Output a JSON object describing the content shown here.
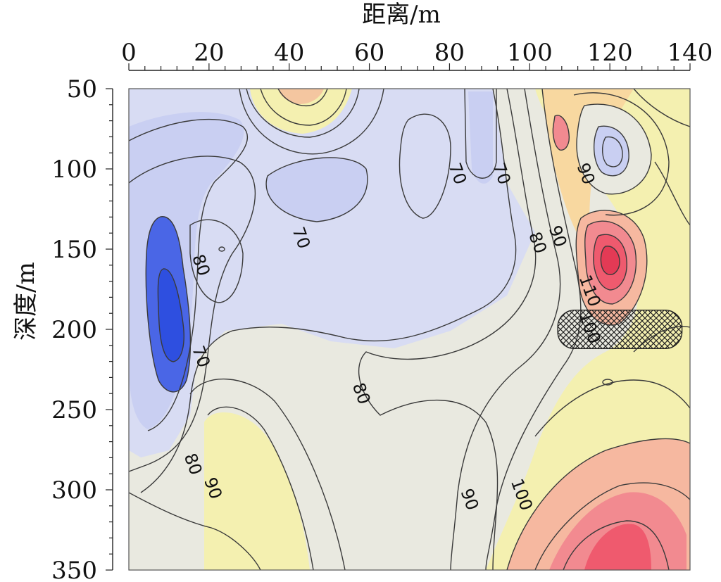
{
  "chart_data": {
    "type": "heatmap",
    "subtype": "contour",
    "title": "",
    "xlabel": "距离/m",
    "ylabel": "深度/m",
    "x_axis_position": "top",
    "y_axis_inverted": true,
    "xlim": [
      0,
      140
    ],
    "ylim": [
      50,
      350
    ],
    "x_ticks": [
      "0",
      "20",
      "40",
      "60",
      "80",
      "100",
      "120",
      "140"
    ],
    "y_ticks": [
      "50",
      "100",
      "150",
      "200",
      "250",
      "300",
      "350"
    ],
    "colors": {
      "low": "#2e4fe0",
      "mid_low": "#c9cff2",
      "mid": "#e9e9e0",
      "mid_high": "#f4f0b0",
      "high": "#ef5a6e"
    },
    "contour_labels": [
      {
        "text": "70",
        "x": 43,
        "y": 143
      },
      {
        "text": "70",
        "x": 82,
        "y": 103
      },
      {
        "text": "70",
        "x": 93,
        "y": 103
      },
      {
        "text": "70",
        "x": 18,
        "y": 217
      },
      {
        "text": "80",
        "x": 18,
        "y": 160
      },
      {
        "text": "80",
        "x": 102,
        "y": 146
      },
      {
        "text": "80",
        "x": 58,
        "y": 240
      },
      {
        "text": "80",
        "x": 16,
        "y": 284
      },
      {
        "text": "90",
        "x": 107,
        "y": 142
      },
      {
        "text": "90",
        "x": 114,
        "y": 103
      },
      {
        "text": "90",
        "x": 21,
        "y": 299
      },
      {
        "text": "90",
        "x": 85,
        "y": 306
      },
      {
        "text": "100",
        "x": 98,
        "y": 303
      },
      {
        "text": "100",
        "x": 115,
        "y": 199
      },
      {
        "text": "110",
        "x": 115,
        "y": 176
      }
    ],
    "anomalies": [
      {
        "type": "low",
        "x": 10,
        "y": 185,
        "level": 50
      },
      {
        "type": "high",
        "x": 120,
        "y": 158,
        "level": 130
      },
      {
        "type": "high",
        "x": 125,
        "y": 340,
        "level": 120
      },
      {
        "type": "low",
        "x": 121,
        "y": 90,
        "level": 70
      }
    ],
    "hatched_zone": {
      "x_range": [
        107,
        138
      ],
      "y_range": [
        188,
        212
      ]
    }
  }
}
